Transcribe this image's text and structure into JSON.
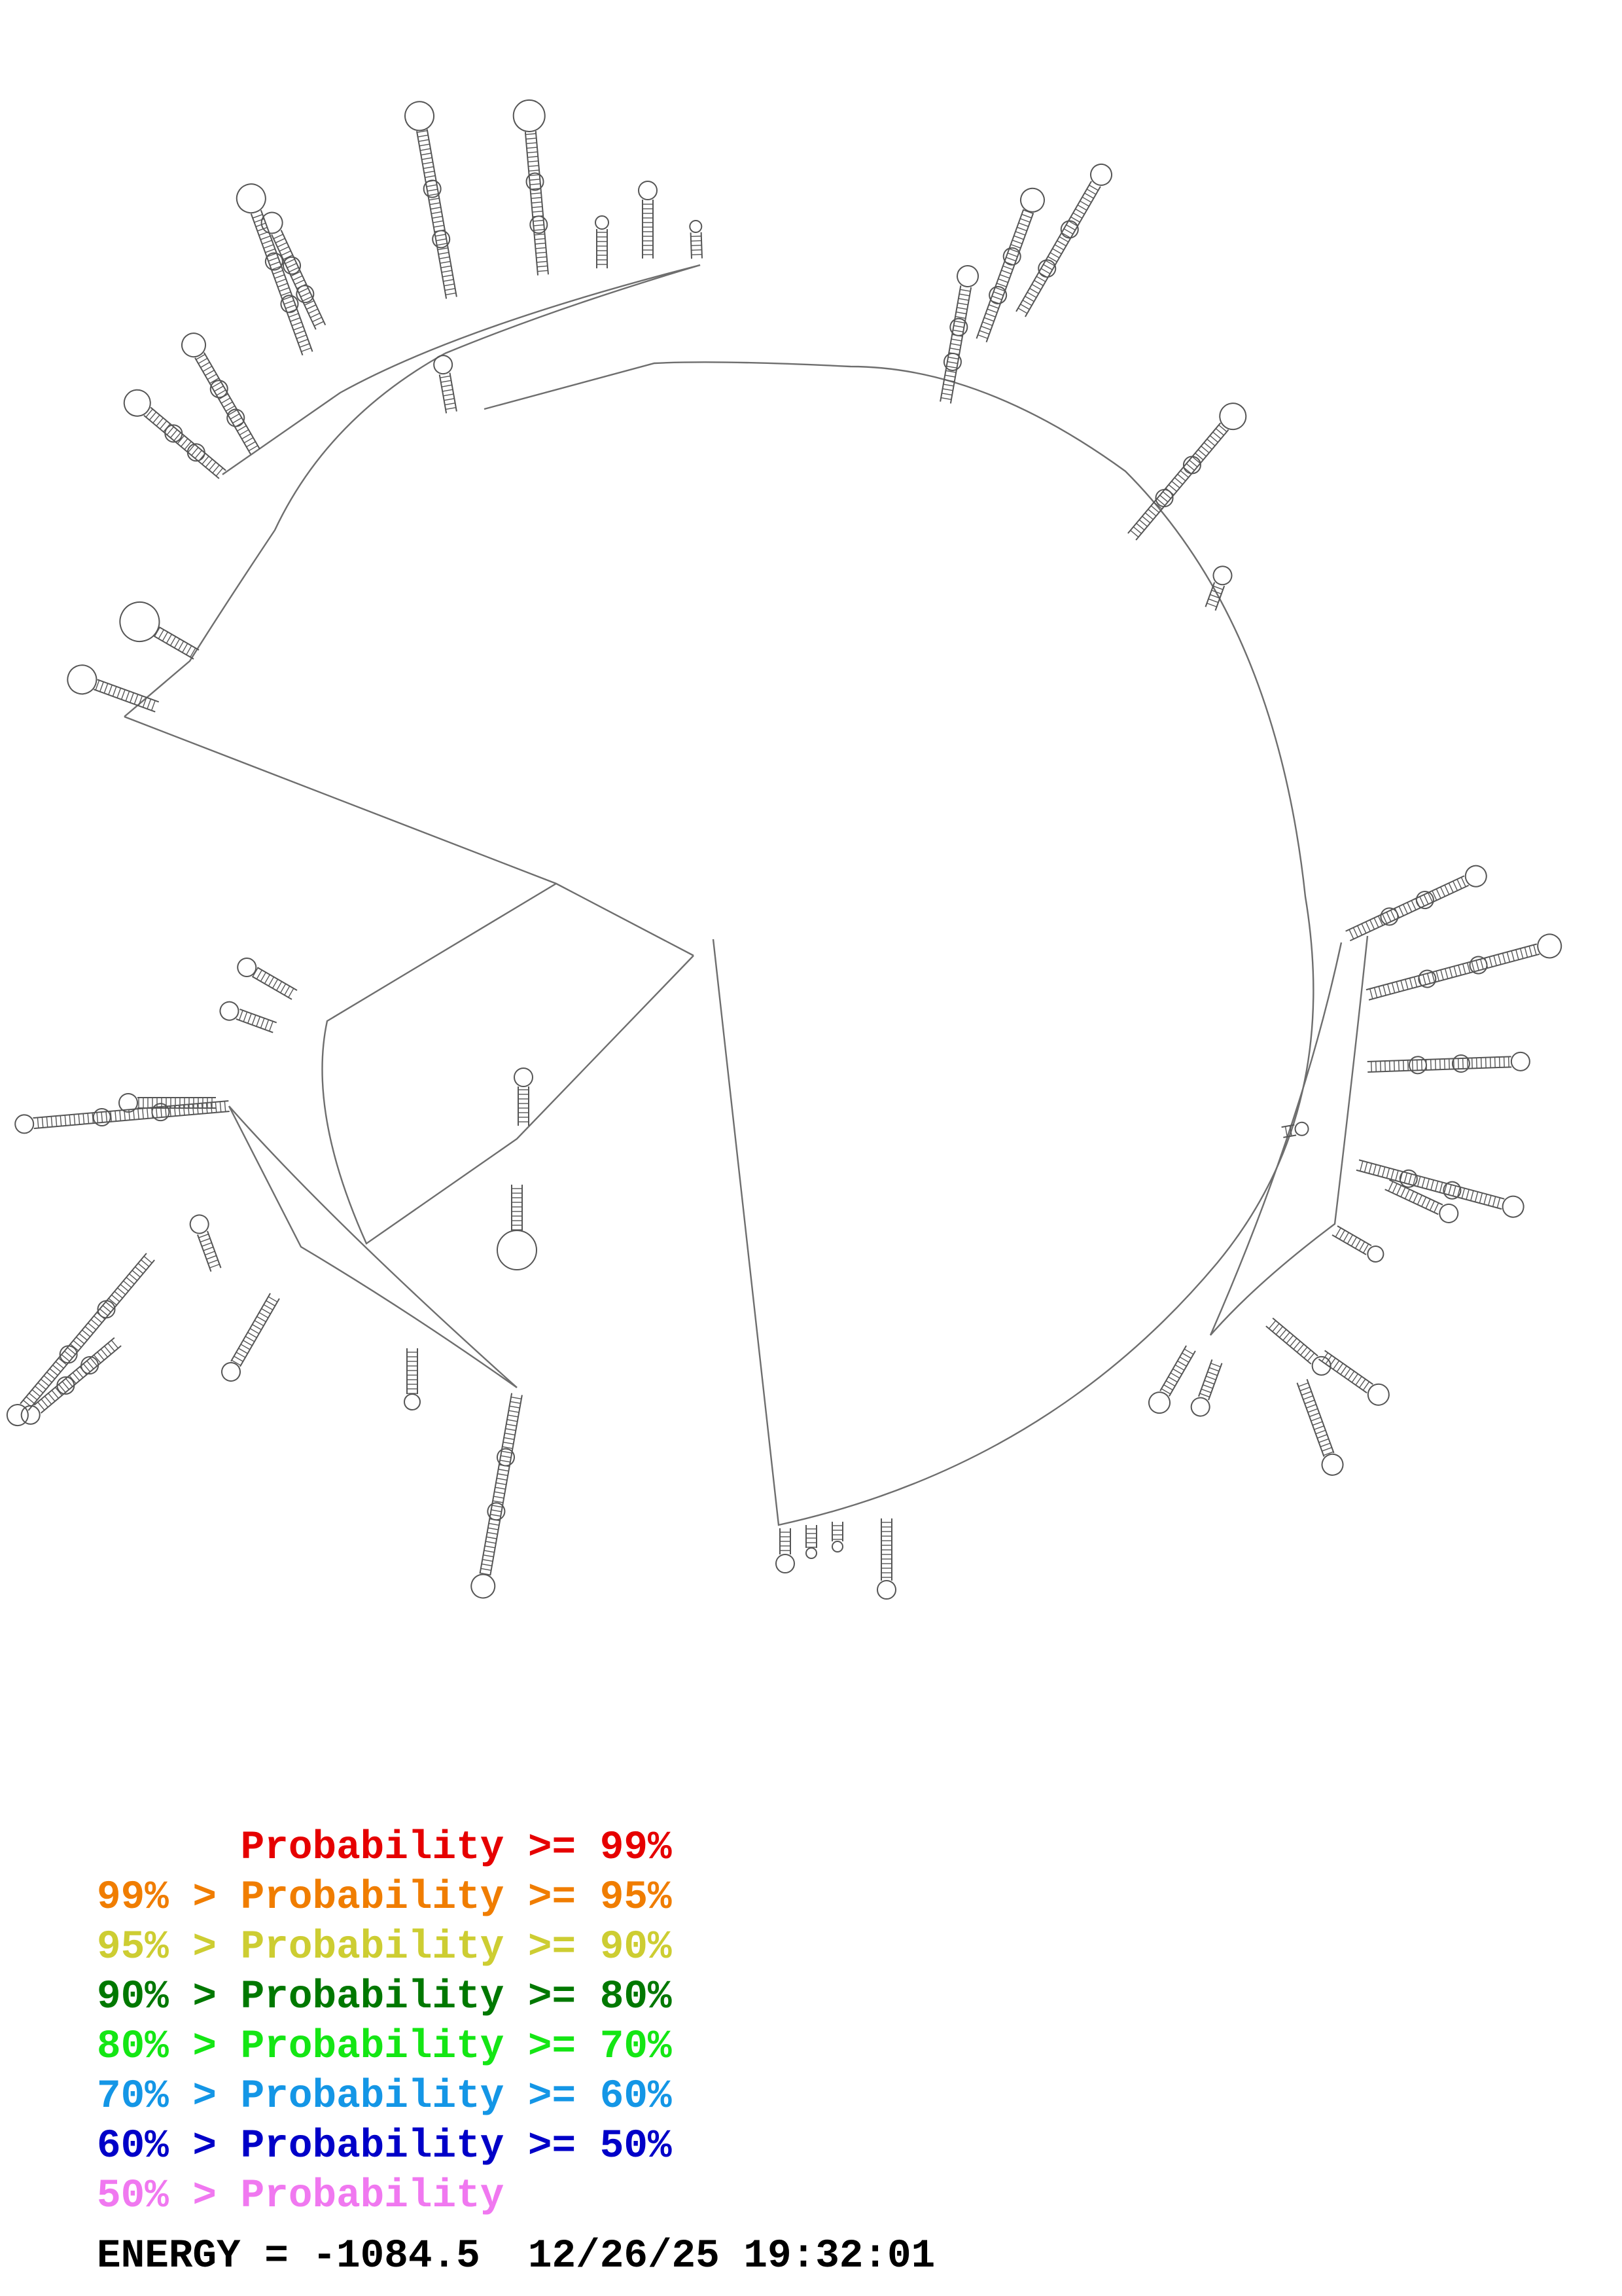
{
  "legend": {
    "rows": [
      {
        "range": "      ",
        "label": "Probability >= 99%",
        "color": "#e60000"
      },
      {
        "range": "99% > ",
        "label": "Probability >= 95%",
        "color": "#f07d00"
      },
      {
        "range": "95% > ",
        "label": "Probability >= 90%",
        "color": "#cdcd32"
      },
      {
        "range": "90% > ",
        "label": "Probability >= 80%",
        "color": "#007800"
      },
      {
        "range": "80% > ",
        "label": "Probability >= 70%",
        "color": "#14e614"
      },
      {
        "range": "70% > ",
        "label": "Probability >= 60%",
        "color": "#1496e6"
      },
      {
        "range": "60% > ",
        "label": "Probability >= 50%",
        "color": "#0000c8"
      },
      {
        "range": "50% > ",
        "label": "Probability",
        "color": "#f078f0"
      }
    ]
  },
  "footer": {
    "energy_text": "ENERGY = -1084.5",
    "timestamp": "12/26/25 19:32:01"
  },
  "colors": {
    "backbone": "#6e6e6e",
    "structure_lines": "#555555",
    "text": "#000000",
    "background": "#ffffff"
  }
}
